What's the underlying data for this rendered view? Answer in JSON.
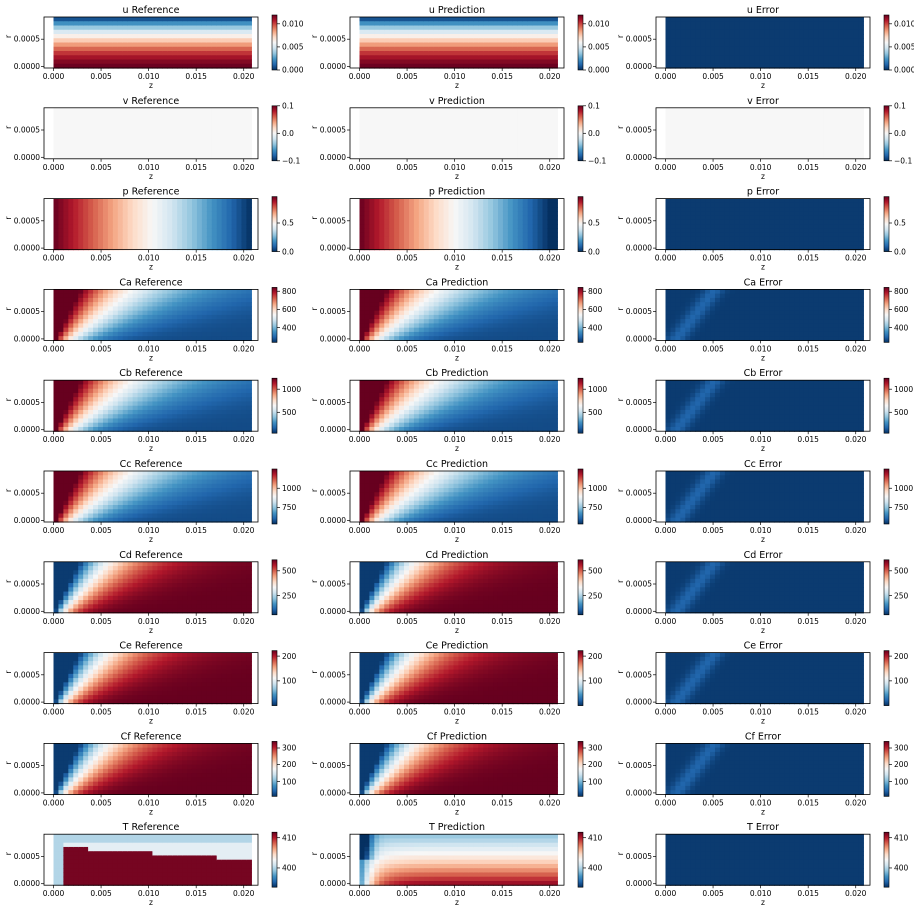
{
  "figure": {
    "column_titles": [
      "Reference",
      "Prediction",
      "Error"
    ],
    "xlabel": "z",
    "ylabel": "r"
  },
  "colormap": {
    "name": "RdBu_r",
    "stops": [
      "#053061",
      "#2166ac",
      "#4393c3",
      "#92c5de",
      "#d1e5f0",
      "#f7f7f7",
      "#fddbc7",
      "#f4a582",
      "#d6604d",
      "#b2182b",
      "#67001f"
    ]
  },
  "chart_data": {
    "type": "heatmap",
    "x_range": [
      0.0,
      0.021
    ],
    "x_ticks": [
      "0.000",
      "0.005",
      "0.010",
      "0.015",
      "0.020"
    ],
    "y_range": [
      0.0,
      0.00085
    ],
    "y_ticks": [
      "0.0000",
      "0.0005"
    ],
    "rows": [
      {
        "var": "u",
        "titles": [
          "u Reference",
          "u Prediction",
          "u Error"
        ],
        "cbar_ticks": [
          "0.000",
          "0.005",
          "0.010"
        ],
        "cbar_tick_frac": [
          0.0,
          0.42,
          0.84
        ],
        "pattern": "u"
      },
      {
        "var": "v",
        "titles": [
          "v Reference",
          "v Prediction",
          "v Error"
        ],
        "cbar_ticks": [
          "0.1",
          "0.0",
          "−0.1"
        ],
        "cbar_tick_frac": [
          1.0,
          0.5,
          0.0
        ],
        "pattern": "v"
      },
      {
        "var": "p",
        "titles": [
          "p Reference",
          "p Prediction",
          "p Error"
        ],
        "cbar_ticks": [
          "0.0",
          "0.5"
        ],
        "cbar_tick_frac": [
          0.0,
          0.52
        ],
        "pattern": "p"
      },
      {
        "var": "Ca",
        "titles": [
          "Ca Reference",
          "Ca Prediction",
          "Ca Error"
        ],
        "cbar_ticks": [
          "800",
          "600",
          "400"
        ],
        "cbar_tick_frac": [
          0.93,
          0.6,
          0.27
        ],
        "pattern": "decay"
      },
      {
        "var": "Cb",
        "titles": [
          "Cb Reference",
          "Cb Prediction",
          "Cb Error"
        ],
        "cbar_ticks": [
          "1000",
          "500"
        ],
        "cbar_tick_frac": [
          0.8,
          0.38
        ],
        "pattern": "decay"
      },
      {
        "var": "Cc",
        "titles": [
          "Cc Reference",
          "Cc Prediction",
          "Cc Error"
        ],
        "cbar_ticks": [
          "1000",
          "750"
        ],
        "cbar_tick_frac": [
          0.65,
          0.3
        ],
        "pattern": "decay"
      },
      {
        "var": "Cd",
        "titles": [
          "Cd Reference",
          "Cd Prediction",
          "Cd Error"
        ],
        "cbar_ticks": [
          "500",
          "250"
        ],
        "cbar_tick_frac": [
          0.8,
          0.35
        ],
        "pattern": "grow"
      },
      {
        "var": "Ce",
        "titles": [
          "Ce Reference",
          "Ce Prediction",
          "Ce Error"
        ],
        "cbar_ticks": [
          "200",
          "100"
        ],
        "cbar_tick_frac": [
          0.9,
          0.45
        ],
        "pattern": "grow"
      },
      {
        "var": "Cf",
        "titles": [
          "Cf Reference",
          "Cf Prediction",
          "Cf Error"
        ],
        "cbar_ticks": [
          "300",
          "200",
          "100"
        ],
        "cbar_tick_frac": [
          0.88,
          0.58,
          0.27
        ],
        "pattern": "grow"
      },
      {
        "var": "T",
        "titles": [
          "T Reference",
          "T Prediction",
          "T Error"
        ],
        "cbar_ticks": [
          "410",
          "400"
        ],
        "cbar_tick_frac": [
          0.9,
          0.35
        ],
        "pattern": "T"
      }
    ]
  }
}
